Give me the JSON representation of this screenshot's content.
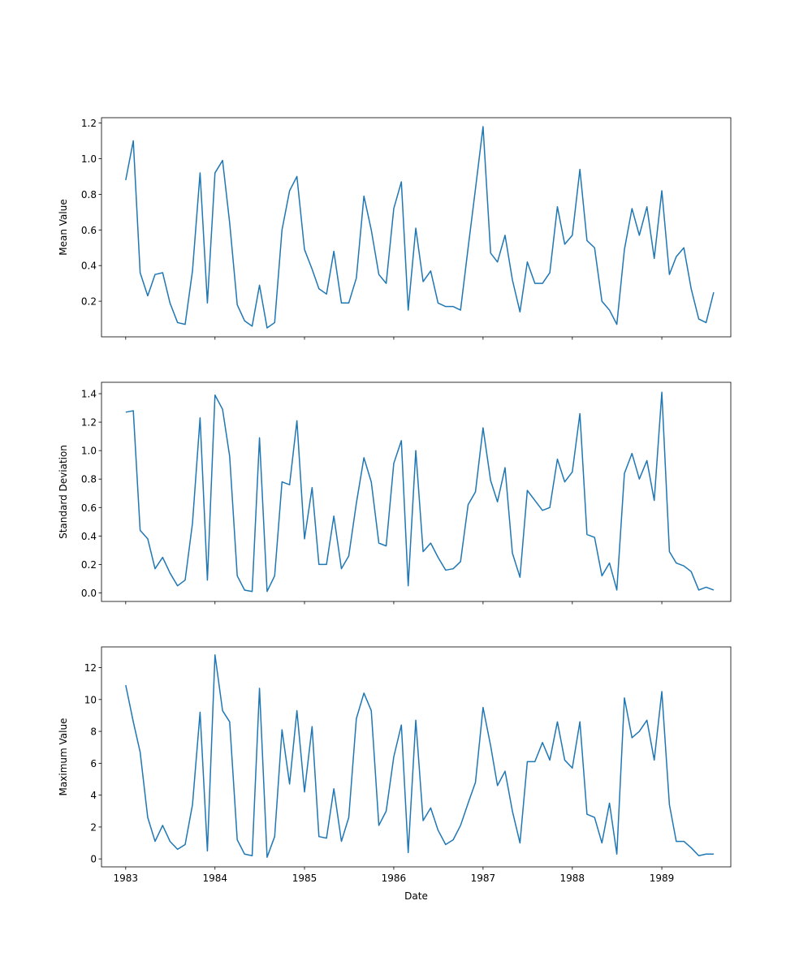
{
  "chart_data": [
    {
      "type": "line",
      "ylabel": "Mean Value",
      "xlabel": "",
      "xlim": [
        "1982-09-24",
        "1989-10-10"
      ],
      "ylim": [
        0.0,
        1.23
      ],
      "yticks": [
        0.2,
        0.4,
        0.6,
        0.8,
        1.0,
        1.2
      ],
      "ytick_labels": [
        "0.2",
        "0.4",
        "0.6",
        "0.8",
        "1.0",
        "1.2"
      ],
      "xticks": [
        "1983-01-01",
        "1984-01-01",
        "1985-01-01",
        "1986-01-01",
        "1987-01-01",
        "1988-01-01",
        "1989-01-01"
      ],
      "xtick_labels": [],
      "grid": false,
      "series": [
        {
          "color": "#1f77b4",
          "x": [
            "1983-01",
            "1983-02",
            "1983-03",
            "1983-04",
            "1983-05",
            "1983-06",
            "1983-07",
            "1983-08",
            "1983-09",
            "1983-10",
            "1983-11",
            "1983-12",
            "1984-01",
            "1984-02",
            "1984-03",
            "1984-04",
            "1984-05",
            "1984-06",
            "1984-07",
            "1984-08",
            "1984-09",
            "1984-10",
            "1984-11",
            "1984-12",
            "1985-01",
            "1985-02",
            "1985-03",
            "1985-04",
            "1985-05",
            "1985-06",
            "1985-07",
            "1985-08",
            "1985-09",
            "1985-10",
            "1985-11",
            "1985-12",
            "1986-01",
            "1986-02",
            "1986-03",
            "1986-04",
            "1986-05",
            "1986-06",
            "1986-07",
            "1986-08",
            "1986-09",
            "1986-10",
            "1986-11",
            "1986-12",
            "1987-01",
            "1987-02",
            "1987-03",
            "1987-04",
            "1987-05",
            "1987-06",
            "1987-07",
            "1987-08",
            "1987-09",
            "1987-10",
            "1987-11",
            "1987-12",
            "1988-01",
            "1988-02",
            "1988-03",
            "1988-04",
            "1988-05",
            "1988-06",
            "1988-07",
            "1988-08",
            "1988-09",
            "1988-10",
            "1988-11",
            "1988-12",
            "1989-01",
            "1989-02",
            "1989-03",
            "1989-04",
            "1989-05",
            "1989-06",
            "1989-07",
            "1989-08"
          ],
          "y": [
            0.88,
            1.1,
            0.36,
            0.23,
            0.35,
            0.36,
            0.19,
            0.08,
            0.07,
            0.37,
            0.92,
            0.19,
            0.92,
            0.99,
            0.64,
            0.18,
            0.09,
            0.06,
            0.29,
            0.05,
            0.08,
            0.6,
            0.82,
            0.9,
            0.49,
            0.38,
            0.27,
            0.24,
            0.48,
            0.19,
            0.19,
            0.33,
            0.79,
            0.6,
            0.35,
            0.3,
            0.72,
            0.87,
            0.15,
            0.61,
            0.31,
            0.37,
            0.19,
            0.17,
            0.17,
            0.15,
            0.5,
            0.83,
            1.18,
            0.47,
            0.42,
            0.57,
            0.32,
            0.14,
            0.42,
            0.3,
            0.3,
            0.36,
            0.73,
            0.52,
            0.57,
            0.94,
            0.54,
            0.5,
            0.2,
            0.15,
            0.07,
            0.49,
            0.72,
            0.57,
            0.73,
            0.44,
            0.82,
            0.35,
            0.45,
            0.5,
            0.27,
            0.1,
            0.08,
            0.25
          ]
        }
      ]
    },
    {
      "type": "line",
      "ylabel": "Standard Deviation",
      "xlabel": "",
      "xlim": [
        "1982-09-24",
        "1989-10-10"
      ],
      "ylim": [
        -0.06,
        1.48
      ],
      "yticks": [
        0.0,
        0.2,
        0.4,
        0.6,
        0.8,
        1.0,
        1.2,
        1.4
      ],
      "ytick_labels": [
        "0.0",
        "0.2",
        "0.4",
        "0.6",
        "0.8",
        "1.0",
        "1.2",
        "1.4"
      ],
      "xticks": [
        "1983-01-01",
        "1984-01-01",
        "1985-01-01",
        "1986-01-01",
        "1987-01-01",
        "1988-01-01",
        "1989-01-01"
      ],
      "xtick_labels": [],
      "grid": false,
      "series": [
        {
          "color": "#1f77b4",
          "x": [
            "1983-01",
            "1983-02",
            "1983-03",
            "1983-04",
            "1983-05",
            "1983-06",
            "1983-07",
            "1983-08",
            "1983-09",
            "1983-10",
            "1983-11",
            "1983-12",
            "1984-01",
            "1984-02",
            "1984-03",
            "1984-04",
            "1984-05",
            "1984-06",
            "1984-07",
            "1984-08",
            "1984-09",
            "1984-10",
            "1984-11",
            "1984-12",
            "1985-01",
            "1985-02",
            "1985-03",
            "1985-04",
            "1985-05",
            "1985-06",
            "1985-07",
            "1985-08",
            "1985-09",
            "1985-10",
            "1985-11",
            "1985-12",
            "1986-01",
            "1986-02",
            "1986-03",
            "1986-04",
            "1986-05",
            "1986-06",
            "1986-07",
            "1986-08",
            "1986-09",
            "1986-10",
            "1986-11",
            "1986-12",
            "1987-01",
            "1987-02",
            "1987-03",
            "1987-04",
            "1987-05",
            "1987-06",
            "1987-07",
            "1987-08",
            "1987-09",
            "1987-10",
            "1987-11",
            "1987-12",
            "1988-01",
            "1988-02",
            "1988-03",
            "1988-04",
            "1988-05",
            "1988-06",
            "1988-07",
            "1988-08",
            "1988-09",
            "1988-10",
            "1988-11",
            "1988-12",
            "1989-01",
            "1989-02",
            "1989-03",
            "1989-04",
            "1989-05",
            "1989-06",
            "1989-07",
            "1989-08"
          ],
          "y": [
            1.27,
            1.28,
            0.44,
            0.38,
            0.17,
            0.25,
            0.14,
            0.05,
            0.09,
            0.49,
            1.23,
            0.09,
            1.39,
            1.29,
            0.96,
            0.12,
            0.02,
            0.01,
            1.09,
            0.01,
            0.12,
            0.78,
            0.76,
            1.21,
            0.38,
            0.74,
            0.2,
            0.2,
            0.54,
            0.17,
            0.26,
            0.63,
            0.95,
            0.78,
            0.35,
            0.33,
            0.91,
            1.07,
            0.05,
            1.0,
            0.29,
            0.35,
            0.25,
            0.16,
            0.17,
            0.22,
            0.62,
            0.71,
            1.16,
            0.79,
            0.64,
            0.88,
            0.28,
            0.11,
            0.72,
            0.65,
            0.58,
            0.6,
            0.94,
            0.78,
            0.85,
            1.26,
            0.41,
            0.39,
            0.12,
            0.21,
            0.02,
            0.84,
            0.98,
            0.8,
            0.93,
            0.65,
            1.41,
            0.29,
            0.21,
            0.19,
            0.15,
            0.02,
            0.04,
            0.02
          ]
        }
      ]
    },
    {
      "type": "line",
      "ylabel": "Maximum Value",
      "xlabel": "Date",
      "xlim": [
        "1982-09-24",
        "1989-10-10"
      ],
      "ylim": [
        -0.5,
        13.3
      ],
      "yticks": [
        0,
        2,
        4,
        6,
        8,
        10,
        12
      ],
      "ytick_labels": [
        "0",
        "2",
        "4",
        "6",
        "8",
        "10",
        "12"
      ],
      "xticks": [
        "1983-01-01",
        "1984-01-01",
        "1985-01-01",
        "1986-01-01",
        "1987-01-01",
        "1988-01-01",
        "1989-01-01"
      ],
      "xtick_labels": [
        "1983",
        "1984",
        "1985",
        "1986",
        "1987",
        "1988",
        "1989"
      ],
      "grid": false,
      "series": [
        {
          "color": "#1f77b4",
          "x": [
            "1983-01",
            "1983-02",
            "1983-03",
            "1983-04",
            "1983-05",
            "1983-06",
            "1983-07",
            "1983-08",
            "1983-09",
            "1983-10",
            "1983-11",
            "1983-12",
            "1984-01",
            "1984-02",
            "1984-03",
            "1984-04",
            "1984-05",
            "1984-06",
            "1984-07",
            "1984-08",
            "1984-09",
            "1984-10",
            "1984-11",
            "1984-12",
            "1985-01",
            "1985-02",
            "1985-03",
            "1985-04",
            "1985-05",
            "1985-06",
            "1985-07",
            "1985-08",
            "1985-09",
            "1985-10",
            "1985-11",
            "1985-12",
            "1986-01",
            "1986-02",
            "1986-03",
            "1986-04",
            "1986-05",
            "1986-06",
            "1986-07",
            "1986-08",
            "1986-09",
            "1986-10",
            "1986-11",
            "1986-12",
            "1987-01",
            "1987-02",
            "1987-03",
            "1987-04",
            "1987-05",
            "1987-06",
            "1987-07",
            "1987-08",
            "1987-09",
            "1987-10",
            "1987-11",
            "1987-12",
            "1988-01",
            "1988-02",
            "1988-03",
            "1988-04",
            "1988-05",
            "1988-06",
            "1988-07",
            "1988-08",
            "1988-09",
            "1988-10",
            "1988-11",
            "1988-12",
            "1989-01",
            "1989-02",
            "1989-03",
            "1989-04",
            "1989-05",
            "1989-06",
            "1989-07",
            "1989-08"
          ],
          "y": [
            10.9,
            8.6,
            6.7,
            2.6,
            1.1,
            2.1,
            1.1,
            0.6,
            0.9,
            3.4,
            9.2,
            0.5,
            12.8,
            9.3,
            8.6,
            1.2,
            0.3,
            0.2,
            10.7,
            0.1,
            1.4,
            8.1,
            4.7,
            9.3,
            4.2,
            8.3,
            1.4,
            1.3,
            4.4,
            1.1,
            2.6,
            8.8,
            10.4,
            9.3,
            2.1,
            3.0,
            6.4,
            8.4,
            0.4,
            8.7,
            2.4,
            3.2,
            1.8,
            0.9,
            1.2,
            2.1,
            3.5,
            4.8,
            9.5,
            7.1,
            4.6,
            5.5,
            3.0,
            1.0,
            6.1,
            6.1,
            7.3,
            6.2,
            8.6,
            6.2,
            5.7,
            8.6,
            2.8,
            2.6,
            1.0,
            3.5,
            0.3,
            10.1,
            7.6,
            8.0,
            8.7,
            6.2,
            10.5,
            3.4,
            1.1,
            1.1,
            0.7,
            0.2,
            0.3,
            0.3
          ]
        }
      ]
    }
  ]
}
